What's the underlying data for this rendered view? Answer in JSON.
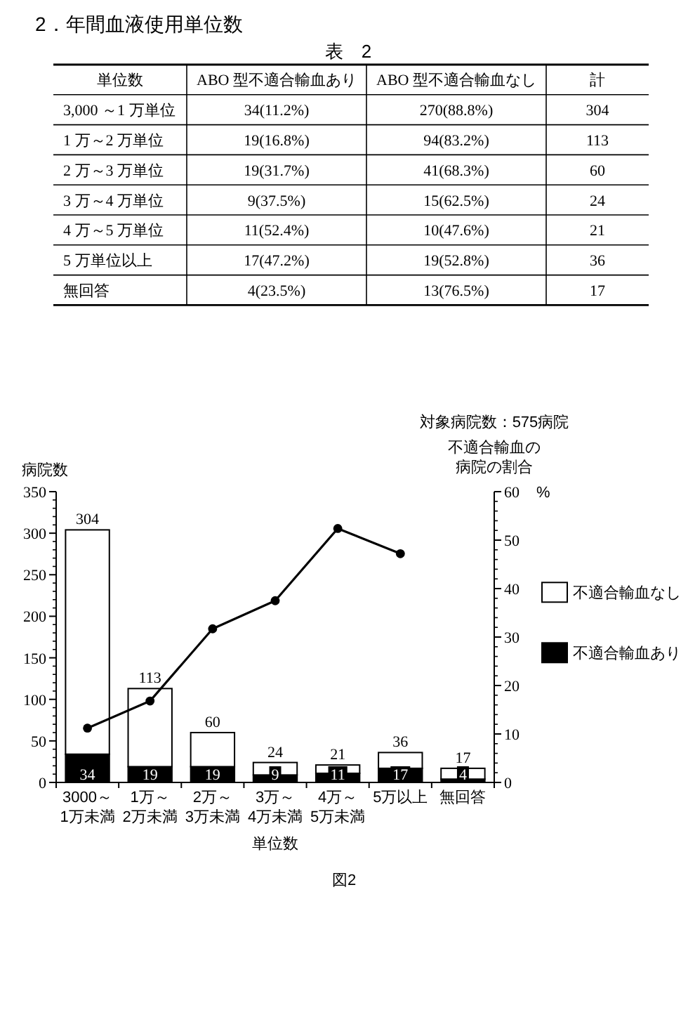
{
  "chart_data": [
    {
      "type": "other",
      "title": "2．年間血液使用単位数",
      "subtitle": "表　2",
      "categories": [
        "単位数",
        "ABO 型不適合輸血あり",
        "ABO 型不適合輸血なし",
        "計"
      ],
      "y_categories": [
        "3,000 ～1 万単位",
        "1 万～2 万単位",
        "2 万～3 万単位",
        "3 万～4 万単位",
        "4 万～5 万単位",
        "5 万単位以上",
        "無回答"
      ],
      "annotations": [
        "34(11.2%)",
        "270(88.8%)",
        "304",
        "19(16.8%)",
        "94(83.2%)",
        "113",
        "19(31.7%)",
        "41(68.3%)",
        "60",
        "9(37.5%)",
        "15(62.5%)",
        "24",
        "11(52.4%)",
        "10(47.6%)",
        "21",
        "17(47.2%)",
        "19(52.8%)",
        "36",
        "4(23.5%)",
        "13(76.5%)",
        "17"
      ]
    },
    {
      "type": "bar",
      "stacked": true,
      "categories": [
        "3000～1万未満",
        "1万～2万未満",
        "2万～3万未満",
        "3万～4万未満",
        "4万～5万未満",
        "5万以上",
        "無回答"
      ],
      "series": [
        {
          "name": "不適合輸血あり",
          "color": "#000000",
          "values": [
            34,
            19,
            19,
            9,
            11,
            17,
            4
          ],
          "value_labels": [
            "34",
            "19",
            "19",
            "9",
            "11",
            "17",
            "4"
          ]
        },
        {
          "name": "不適合輸血なし",
          "color": "#ffffff",
          "values": [
            270,
            94,
            41,
            15,
            10,
            19,
            13
          ]
        },
        {
          "type": "line",
          "axis": "y2",
          "color": "#000000",
          "marker": "circle",
          "values": [
            11.2,
            16.8,
            31.7,
            37.5,
            52.4,
            47.2,
            null
          ]
        }
      ],
      "totals": [
        "304",
        "113",
        "60",
        "24",
        "21",
        "36",
        "17"
      ],
      "ylim": [
        0,
        350
      ],
      "yticks": [
        0,
        50,
        100,
        150,
        200,
        250,
        300,
        350
      ],
      "y2lim": [
        0,
        60
      ],
      "y2ticks": [
        0,
        10,
        20,
        30,
        40,
        50,
        60
      ],
      "ylabel": "病院数",
      "y2label": "不適合輸血の病院の割合",
      "xlabel": "単位数",
      "legend": "right",
      "annotations": [
        "対象病院数：575病院",
        "%",
        "図2"
      ]
    }
  ]
}
